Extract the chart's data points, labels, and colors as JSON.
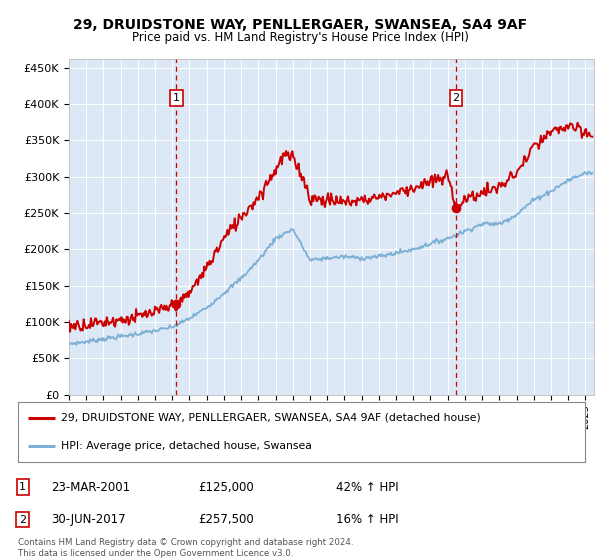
{
  "title1": "29, DRUIDSTONE WAY, PENLLERGAER, SWANSEA, SA4 9AF",
  "title2": "Price paid vs. HM Land Registry's House Price Index (HPI)",
  "ylabel_ticks": [
    "£0",
    "£50K",
    "£100K",
    "£150K",
    "£200K",
    "£250K",
    "£300K",
    "£350K",
    "£400K",
    "£450K"
  ],
  "ytick_values": [
    0,
    50000,
    100000,
    150000,
    200000,
    250000,
    300000,
    350000,
    400000,
    450000
  ],
  "ylim": [
    0,
    462000
  ],
  "xlim_start": 1995.0,
  "xlim_end": 2025.5,
  "background_color": "#dce8f5",
  "hpi_color": "#7bafd4",
  "price_color": "#cc0000",
  "sale1_x": 2001.23,
  "sale1_y": 125000,
  "sale2_x": 2017.49,
  "sale2_y": 257500,
  "legend_line1": "29, DRUIDSTONE WAY, PENLLERGAER, SWANSEA, SA4 9AF (detached house)",
  "legend_line2": "HPI: Average price, detached house, Swansea",
  "table_row1_num": "1",
  "table_row1_date": "23-MAR-2001",
  "table_row1_price": "£125,000",
  "table_row1_hpi": "42% ↑ HPI",
  "table_row2_num": "2",
  "table_row2_date": "30-JUN-2017",
  "table_row2_price": "£257,500",
  "table_row2_hpi": "16% ↑ HPI",
  "footnote1": "Contains HM Land Registry data © Crown copyright and database right 2024.",
  "footnote2": "This data is licensed under the Open Government Licence v3.0."
}
